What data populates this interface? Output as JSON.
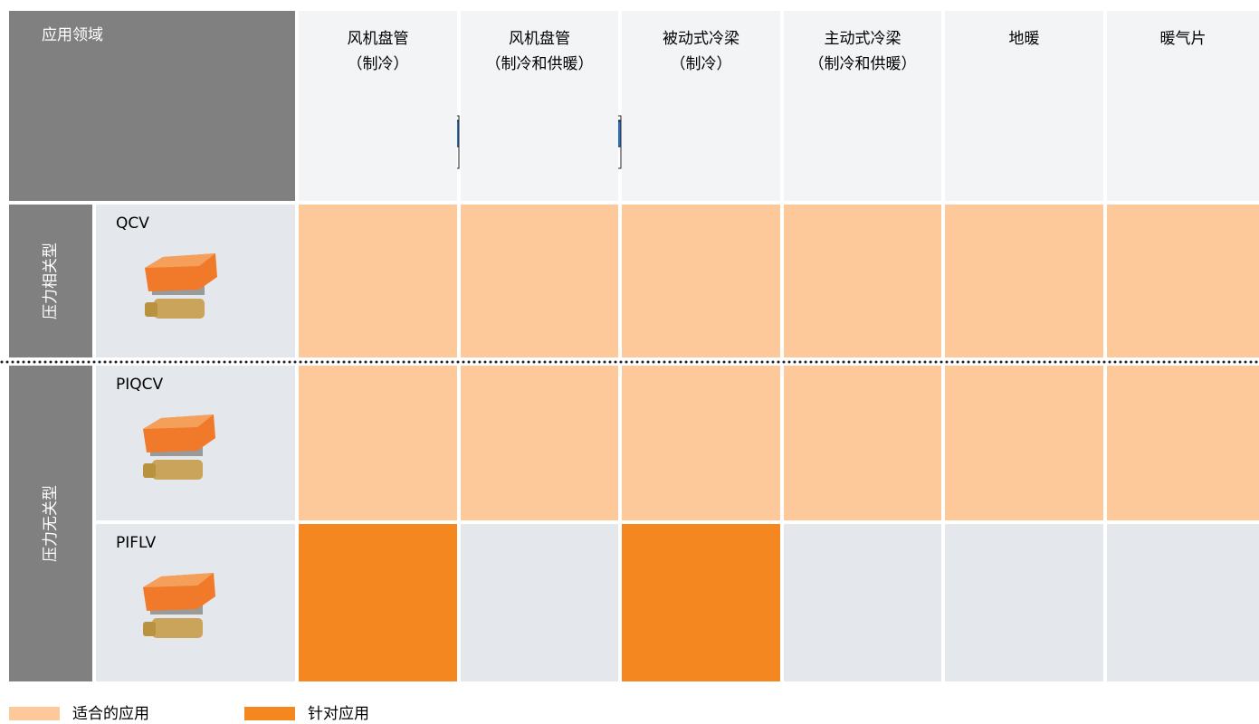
{
  "header": {
    "corner": "应用领域",
    "columns": [
      {
        "title": "风机盘管",
        "subtitle": "（制冷）"
      },
      {
        "title": "风机盘管",
        "subtitle": "（制冷和供暖）"
      },
      {
        "title": "被动式冷梁",
        "subtitle": "（制冷）"
      },
      {
        "title": "主动式冷梁",
        "subtitle": "（制冷和供暖）"
      },
      {
        "title": "地暖"
      },
      {
        "title": "暖气片"
      }
    ]
  },
  "groups": [
    {
      "label": "压力相关型",
      "rows": [
        {
          "name": "QCV",
          "cells": [
            0,
            0,
            0,
            0,
            0,
            0
          ]
        }
      ]
    },
    {
      "label": "压力无关型",
      "rows": [
        {
          "name": "PIQCV",
          "cells": [
            0,
            0,
            0,
            0,
            0,
            0
          ]
        },
        {
          "name": "PIFLV",
          "cells": [
            1,
            null,
            1,
            null,
            null,
            null
          ]
        }
      ]
    }
  ],
  "legend": [
    {
      "label": "适合的应用",
      "color": "#fdc99b"
    },
    {
      "label": "针对应用",
      "color": "#f58720"
    }
  ]
}
